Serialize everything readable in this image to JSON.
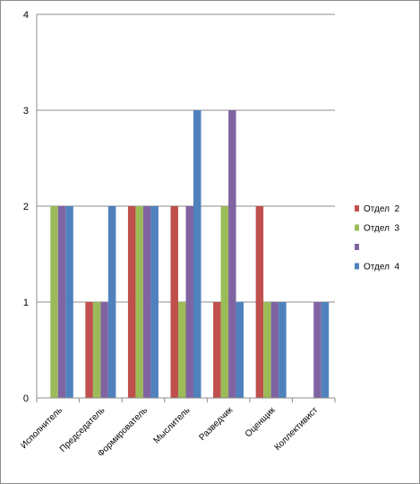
{
  "chart_data": {
    "type": "bar",
    "title": "",
    "xlabel": "",
    "ylabel": "",
    "ylim": [
      0,
      4
    ],
    "yticks": [
      "0",
      "1",
      "2",
      "3",
      "4"
    ],
    "grid": true,
    "legend_position": "right",
    "categories": [
      "Исполнитель",
      "Председатель",
      "Формирователь",
      "Мыслитель",
      "Разведчик",
      "Оценщик",
      "Коллективист"
    ],
    "series": [
      {
        "name": "Отдел  2",
        "color": "#c0504d",
        "values": [
          0,
          1,
          2,
          2,
          1,
          2,
          0
        ]
      },
      {
        "name": "Отдел  3",
        "color": "#9bbb59",
        "values": [
          2,
          1,
          2,
          1,
          2,
          1,
          0
        ]
      },
      {
        "name": "",
        "color": "#8064a2",
        "values": [
          2,
          1,
          2,
          2,
          3,
          1,
          1
        ]
      },
      {
        "name": "Отдел  4",
        "color": "#4f81bd",
        "values": [
          2,
          2,
          2,
          3,
          1,
          1,
          1
        ]
      }
    ]
  }
}
